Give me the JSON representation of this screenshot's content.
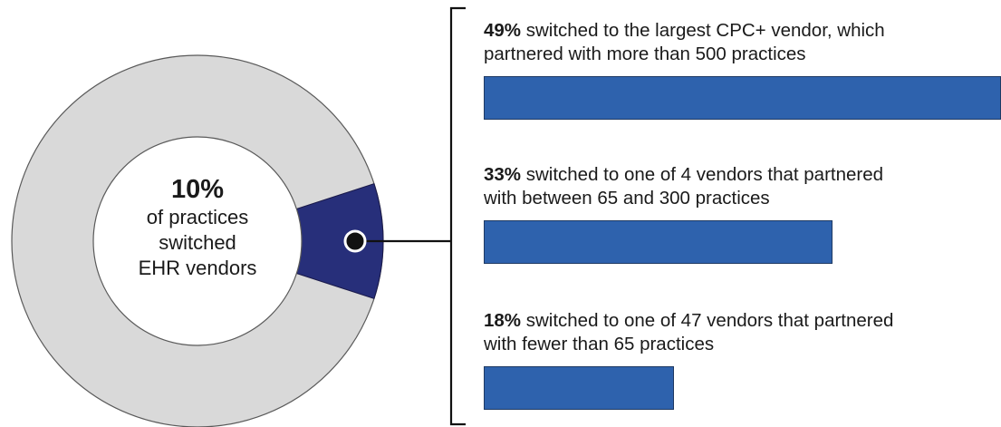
{
  "colors": {
    "donut_rest": "#d9d9d9",
    "donut_highlight": "#272f7a",
    "bar_fill": "#2e62ad",
    "connector": "#111111"
  },
  "donut": {
    "pct_text": "10%",
    "lines": [
      "of practices",
      "switched",
      "EHR vendors"
    ]
  },
  "chart_data": {
    "type": "bar",
    "orientation": "horizontal",
    "donut_share_switched": 10,
    "categories": [
      "switched to the largest CPC+ vendor, which partnered with more than 500 practices",
      "switched to one of 4 vendors that partnered with between 65 and 300 practices",
      "switched to one of 47 vendors that partnered with fewer than 65 practices"
    ],
    "values": [
      49,
      33,
      18
    ],
    "unit": "%",
    "xlim": [
      0,
      49
    ]
  },
  "bars": [
    {
      "pct": "49%",
      "text_line1": " switched to the largest CPC+ vendor, which",
      "text_line2": "partnered with more than 500 practices"
    },
    {
      "pct": "33%",
      "text_line1": " switched to one of 4 vendors that partnered",
      "text_line2": "with between 65 and 300 practices"
    },
    {
      "pct": "18%",
      "text_line1": " switched to one of 47 vendors that partnered",
      "text_line2": "with fewer than 65 practices"
    }
  ]
}
